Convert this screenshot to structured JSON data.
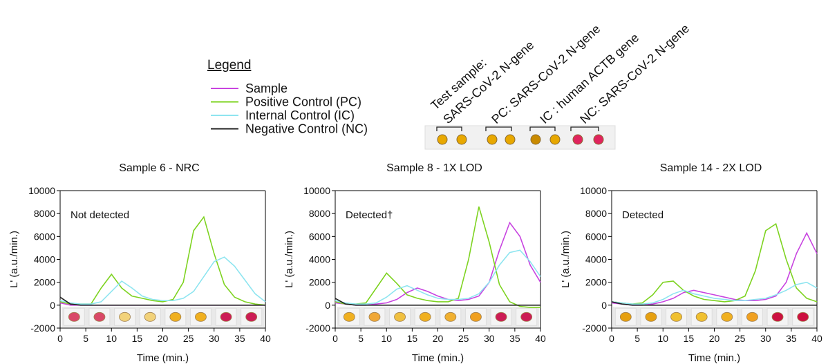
{
  "header": {
    "labels": [
      "Test sample:",
      "SARS-CoV-2 N-gene",
      "PC: SARS-CoV-2 N-gene",
      "IC : human ACTB gene",
      "NC: SARS-CoV-2 N-gene"
    ]
  },
  "legend": {
    "title": "Legend",
    "items": [
      {
        "name": "Sample",
        "color": "#c844e0"
      },
      {
        "name": "Positive Control (PC)",
        "color": "#7ed321"
      },
      {
        "name": "Internal Control (IC)",
        "color": "#8ee5f0"
      },
      {
        "name": "Negative Control (NC)",
        "color": "#222222"
      }
    ]
  },
  "chart_data": [
    {
      "type": "line",
      "title": "Sample 6 - NRC",
      "annotation": "Not detected",
      "x_label": "Time (min.)",
      "y_label": "L' (a.u./min.)",
      "xlim": [
        0,
        40
      ],
      "ylim": [
        -2000,
        10000
      ],
      "xticks": [
        0,
        5,
        10,
        15,
        20,
        25,
        30,
        35,
        40
      ],
      "yticks": [
        -2000,
        0,
        2000,
        4000,
        6000,
        8000,
        10000
      ],
      "x": [
        0,
        2,
        4,
        6,
        8,
        10,
        12,
        14,
        16,
        18,
        20,
        22,
        24,
        26,
        28,
        30,
        32,
        34,
        36,
        38,
        40
      ],
      "series": [
        {
          "color": "#c844e0",
          "values": [
            200,
            0,
            0,
            0,
            0,
            0,
            0,
            0,
            0,
            0,
            0,
            0,
            0,
            0,
            0,
            0,
            0,
            0,
            0,
            0,
            0
          ]
        },
        {
          "color": "#7ed321",
          "values": [
            300,
            100,
            100,
            100,
            1500,
            2700,
            1500,
            800,
            600,
            400,
            300,
            500,
            2000,
            6500,
            7700,
            4500,
            1800,
            700,
            300,
            100,
            0
          ]
        },
        {
          "color": "#8ee5f0",
          "values": [
            400,
            200,
            100,
            100,
            300,
            1200,
            2100,
            1500,
            800,
            500,
            400,
            400,
            600,
            1200,
            2500,
            3800,
            4200,
            3400,
            2200,
            1000,
            300
          ]
        },
        {
          "color": "#222222",
          "values": [
            700,
            100,
            0,
            0,
            0,
            0,
            0,
            0,
            0,
            0,
            0,
            0,
            0,
            0,
            0,
            0,
            0,
            0,
            0,
            0,
            0
          ]
        }
      ]
    },
    {
      "type": "line",
      "title": "Sample 8 - 1X LOD",
      "annotation": "Detected†",
      "x_label": "Time (min.)",
      "y_label": "L' (a.u./min.)",
      "xlim": [
        0,
        40
      ],
      "ylim": [
        -2000,
        10000
      ],
      "xticks": [
        0,
        5,
        10,
        15,
        20,
        25,
        30,
        35,
        40
      ],
      "yticks": [
        -2000,
        0,
        2000,
        4000,
        6000,
        8000,
        10000
      ],
      "x": [
        0,
        2,
        4,
        6,
        8,
        10,
        12,
        14,
        16,
        18,
        20,
        22,
        24,
        26,
        28,
        30,
        32,
        34,
        36,
        38,
        40
      ],
      "series": [
        {
          "color": "#c844e0",
          "values": [
            200,
            100,
            0,
            0,
            100,
            200,
            500,
            1100,
            1500,
            1200,
            800,
            500,
            400,
            500,
            800,
            2000,
            4800,
            7200,
            6000,
            3500,
            2000
          ]
        },
        {
          "color": "#7ed321",
          "values": [
            300,
            100,
            100,
            200,
            1500,
            2800,
            1900,
            900,
            600,
            400,
            300,
            300,
            600,
            4000,
            8600,
            5500,
            1800,
            300,
            -100,
            -200,
            -200
          ]
        },
        {
          "color": "#8ee5f0",
          "values": [
            400,
            200,
            100,
            100,
            200,
            700,
            1400,
            1700,
            1300,
            900,
            600,
            500,
            500,
            600,
            1000,
            2000,
            3500,
            4600,
            4800,
            3800,
            2500
          ]
        },
        {
          "color": "#222222",
          "values": [
            600,
            100,
            0,
            0,
            0,
            0,
            0,
            0,
            0,
            0,
            0,
            0,
            0,
            0,
            0,
            0,
            0,
            0,
            0,
            0,
            0
          ]
        }
      ]
    },
    {
      "type": "line",
      "title": "Sample 14 - 2X LOD",
      "annotation": "Detected",
      "x_label": "Time (min.)",
      "y_label": "L' (a.u./min.)",
      "xlim": [
        0,
        40
      ],
      "ylim": [
        -2000,
        10000
      ],
      "xticks": [
        0,
        5,
        10,
        15,
        20,
        25,
        30,
        35,
        40
      ],
      "yticks": [
        -2000,
        0,
        2000,
        4000,
        6000,
        8000,
        10000
      ],
      "x": [
        0,
        2,
        4,
        6,
        8,
        10,
        12,
        14,
        16,
        18,
        20,
        22,
        24,
        26,
        28,
        30,
        32,
        34,
        36,
        38,
        40
      ],
      "series": [
        {
          "color": "#c844e0",
          "values": [
            200,
            100,
            0,
            0,
            100,
            300,
            600,
            1100,
            1300,
            1100,
            900,
            700,
            500,
            400,
            400,
            500,
            800,
            2000,
            4500,
            6300,
            4500
          ]
        },
        {
          "color": "#7ed321",
          "values": [
            300,
            200,
            100,
            200,
            900,
            2000,
            2100,
            1300,
            800,
            500,
            400,
            300,
            400,
            800,
            3000,
            6500,
            7100,
            4000,
            1500,
            600,
            300
          ]
        },
        {
          "color": "#8ee5f0",
          "values": [
            300,
            200,
            100,
            100,
            200,
            500,
            1000,
            1300,
            1000,
            800,
            600,
            500,
            400,
            400,
            500,
            600,
            900,
            1300,
            1800,
            2000,
            1500
          ]
        },
        {
          "color": "#222222",
          "values": [
            300,
            100,
            0,
            0,
            0,
            0,
            0,
            0,
            0,
            0,
            0,
            0,
            0,
            0,
            0,
            0,
            0,
            0,
            0,
            0,
            0
          ]
        }
      ]
    }
  ]
}
